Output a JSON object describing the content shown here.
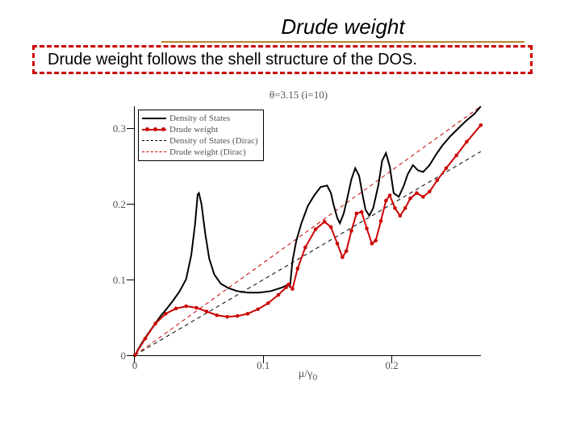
{
  "title": "Drude weight",
  "callout": "Drude weight follows the shell structure of the DOS.",
  "chart": {
    "type": "line",
    "title_html": "θ=3.15 (i=10)",
    "xlabel_html": "μ/γ<sub>0</sub>",
    "xlim": [
      0,
      0.27
    ],
    "ylim": [
      0,
      0.33
    ],
    "xticks": [
      0,
      0.1,
      0.2
    ],
    "yticks": [
      0,
      0.1,
      0.2,
      0.3
    ],
    "axis_color": "#000000",
    "background_color": "#ffffff",
    "tick_label_color": "#555555",
    "legend": {
      "border_color": "#000000",
      "items": [
        {
          "label": "Density of States",
          "color": "#000000",
          "style": "solid",
          "weight": 2
        },
        {
          "label": "Drude weight",
          "color": "#cc0000",
          "style": "solid-markers",
          "weight": 2
        },
        {
          "label": "Density of States (Dirac)",
          "color": "#000000",
          "style": "dashed",
          "weight": 1
        },
        {
          "label": "Drude weight (Dirac)",
          "color": "#cc0000",
          "style": "dashed",
          "weight": 1
        }
      ]
    },
    "series": {
      "dos": {
        "color": "#000000",
        "line_width": 2,
        "style": "solid",
        "data": [
          [
            0.0,
            0.0
          ],
          [
            0.005,
            0.015
          ],
          [
            0.01,
            0.028
          ],
          [
            0.015,
            0.04
          ],
          [
            0.02,
            0.052
          ],
          [
            0.025,
            0.062
          ],
          [
            0.03,
            0.073
          ],
          [
            0.035,
            0.085
          ],
          [
            0.04,
            0.101
          ],
          [
            0.044,
            0.133
          ],
          [
            0.047,
            0.175
          ],
          [
            0.049,
            0.213
          ],
          [
            0.05,
            0.215
          ],
          [
            0.052,
            0.2
          ],
          [
            0.055,
            0.16
          ],
          [
            0.058,
            0.128
          ],
          [
            0.062,
            0.107
          ],
          [
            0.067,
            0.095
          ],
          [
            0.073,
            0.089
          ],
          [
            0.08,
            0.085
          ],
          [
            0.088,
            0.083
          ],
          [
            0.097,
            0.083
          ],
          [
            0.106,
            0.085
          ],
          [
            0.115,
            0.09
          ],
          [
            0.12,
            0.094
          ],
          [
            0.121,
            0.09
          ],
          [
            0.123,
            0.125
          ],
          [
            0.126,
            0.152
          ],
          [
            0.13,
            0.175
          ],
          [
            0.135,
            0.198
          ],
          [
            0.14,
            0.212
          ],
          [
            0.145,
            0.223
          ],
          [
            0.15,
            0.225
          ],
          [
            0.153,
            0.215
          ],
          [
            0.155,
            0.2
          ],
          [
            0.158,
            0.182
          ],
          [
            0.16,
            0.175
          ],
          [
            0.163,
            0.188
          ],
          [
            0.166,
            0.21
          ],
          [
            0.169,
            0.233
          ],
          [
            0.172,
            0.248
          ],
          [
            0.175,
            0.238
          ],
          [
            0.178,
            0.21
          ],
          [
            0.18,
            0.193
          ],
          [
            0.183,
            0.185
          ],
          [
            0.186,
            0.195
          ],
          [
            0.19,
            0.225
          ],
          [
            0.193,
            0.258
          ],
          [
            0.196,
            0.268
          ],
          [
            0.199,
            0.25
          ],
          [
            0.202,
            0.215
          ],
          [
            0.206,
            0.21
          ],
          [
            0.21,
            0.225
          ],
          [
            0.213,
            0.24
          ],
          [
            0.217,
            0.252
          ],
          [
            0.221,
            0.245
          ],
          [
            0.225,
            0.243
          ],
          [
            0.23,
            0.252
          ],
          [
            0.235,
            0.266
          ],
          [
            0.24,
            0.278
          ],
          [
            0.246,
            0.29
          ],
          [
            0.252,
            0.3
          ],
          [
            0.258,
            0.31
          ],
          [
            0.265,
            0.32
          ],
          [
            0.27,
            0.33
          ]
        ]
      },
      "drude": {
        "color": "#cc0000",
        "line_width": 2,
        "style": "solid",
        "marker": "circle",
        "marker_size": 4,
        "data": [
          [
            0.0,
            0.0
          ],
          [
            0.008,
            0.022
          ],
          [
            0.016,
            0.042
          ],
          [
            0.024,
            0.055
          ],
          [
            0.032,
            0.062
          ],
          [
            0.04,
            0.065
          ],
          [
            0.048,
            0.063
          ],
          [
            0.056,
            0.058
          ],
          [
            0.064,
            0.053
          ],
          [
            0.072,
            0.051
          ],
          [
            0.08,
            0.052
          ],
          [
            0.088,
            0.055
          ],
          [
            0.096,
            0.061
          ],
          [
            0.104,
            0.069
          ],
          [
            0.112,
            0.08
          ],
          [
            0.118,
            0.09
          ],
          [
            0.12,
            0.094
          ],
          [
            0.123,
            0.088
          ],
          [
            0.127,
            0.115
          ],
          [
            0.133,
            0.143
          ],
          [
            0.141,
            0.167
          ],
          [
            0.148,
            0.177
          ],
          [
            0.153,
            0.17
          ],
          [
            0.158,
            0.148
          ],
          [
            0.162,
            0.13
          ],
          [
            0.165,
            0.138
          ],
          [
            0.169,
            0.165
          ],
          [
            0.173,
            0.188
          ],
          [
            0.177,
            0.19
          ],
          [
            0.181,
            0.168
          ],
          [
            0.185,
            0.148
          ],
          [
            0.188,
            0.152
          ],
          [
            0.192,
            0.178
          ],
          [
            0.196,
            0.205
          ],
          [
            0.199,
            0.212
          ],
          [
            0.203,
            0.195
          ],
          [
            0.207,
            0.185
          ],
          [
            0.211,
            0.195
          ],
          [
            0.215,
            0.208
          ],
          [
            0.22,
            0.215
          ],
          [
            0.225,
            0.21
          ],
          [
            0.23,
            0.217
          ],
          [
            0.236,
            0.232
          ],
          [
            0.243,
            0.248
          ],
          [
            0.251,
            0.265
          ],
          [
            0.259,
            0.283
          ],
          [
            0.27,
            0.305
          ]
        ]
      },
      "dos_dirac": {
        "color": "#000000",
        "line_width": 1,
        "style": "dashed",
        "data": [
          [
            0,
            0
          ],
          [
            0.27,
            0.27
          ]
        ]
      },
      "drude_dirac": {
        "color": "#cc0000",
        "line_width": 1,
        "style": "dashed",
        "data": [
          [
            0,
            0
          ],
          [
            0.27,
            0.33
          ]
        ]
      }
    }
  },
  "colors": {
    "title_rule": "#b8862b",
    "callout_border": "#cc0000"
  }
}
